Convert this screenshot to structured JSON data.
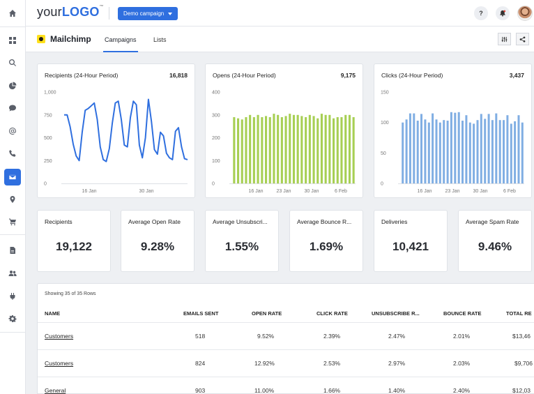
{
  "header": {
    "logo_prefix": "your",
    "logo_strong": "LOGO",
    "logo_tm": "™",
    "campaign_button": "Demo campaign",
    "help_label": "?"
  },
  "subheader": {
    "integration_name": "Mailchimp",
    "tabs": [
      {
        "label": "Campaigns",
        "active": true
      },
      {
        "label": "Lists",
        "active": false
      }
    ]
  },
  "sidebar": {
    "items": [
      {
        "icon": "home-icon"
      },
      {
        "icon": "dashboard-grid-icon"
      },
      {
        "icon": "search-icon"
      },
      {
        "icon": "pie-chart-icon"
      },
      {
        "icon": "chat-icon"
      },
      {
        "icon": "at-sign-icon"
      },
      {
        "icon": "phone-icon"
      },
      {
        "icon": "email-icon",
        "active": true
      },
      {
        "icon": "location-pin-icon"
      },
      {
        "icon": "cart-icon"
      },
      {
        "icon": "report-document-icon"
      },
      {
        "icon": "users-icon"
      },
      {
        "icon": "plug-icon"
      },
      {
        "icon": "settings-gear-icon"
      }
    ]
  },
  "colors": {
    "accent": "#2f6fdf",
    "recipients_line": "#2f6fdf",
    "opens_bar": "#a7cf54",
    "clicks_bar": "#80aee3"
  },
  "charts": {
    "recipients": {
      "title": "Recipients (24-Hour Period)",
      "total": "16,818"
    },
    "opens": {
      "title": "Opens (24-Hour Period)",
      "total": "9,175"
    },
    "clicks": {
      "title": "Clicks (24-Hour Period)",
      "total": "3,437"
    }
  },
  "chart_data": [
    {
      "type": "line",
      "title": "Recipients (24-Hour Period)",
      "ylim": [
        0,
        1000
      ],
      "yticks": [
        "1,000",
        "750",
        "500",
        "250",
        "0"
      ],
      "xtick_labels": [
        "16 Jan",
        "30 Jan"
      ],
      "series": [
        {
          "values": [
            750,
            750,
            620,
            430,
            300,
            250,
            560,
            800,
            820,
            850,
            880,
            700,
            400,
            260,
            240,
            380,
            660,
            880,
            900,
            700,
            420,
            400,
            720,
            900,
            860,
            420,
            280,
            500,
            920,
            680,
            370,
            320,
            560,
            520,
            330,
            280,
            260,
            570,
            610,
            400,
            270,
            260
          ]
        }
      ]
    },
    {
      "type": "bar",
      "title": "Opens (24-Hour Period)",
      "ylim": [
        0,
        400
      ],
      "yticks": [
        "400",
        "300",
        "200",
        "100",
        "0"
      ],
      "xtick_labels": [
        "16 Jan",
        "23 Jan",
        "30 Jan",
        "6 Feb"
      ],
      "series": [
        {
          "values": [
            290,
            285,
            280,
            290,
            300,
            290,
            300,
            290,
            295,
            290,
            305,
            300,
            290,
            295,
            305,
            300,
            300,
            295,
            290,
            300,
            295,
            285,
            305,
            300,
            300,
            285,
            290,
            290,
            300,
            300,
            290
          ]
        }
      ]
    },
    {
      "type": "bar",
      "title": "Clicks (24-Hour Period)",
      "ylim": [
        0,
        150
      ],
      "yticks": [
        "150",
        "100",
        "50",
        "0"
      ],
      "xtick_labels": [
        "16 Jan",
        "23 Jan",
        "30 Jan",
        "6 Feb"
      ],
      "series": [
        {
          "values": [
            100,
            105,
            115,
            115,
            103,
            114,
            105,
            100,
            115,
            105,
            100,
            104,
            103,
            117,
            116,
            117,
            103,
            112,
            100,
            98,
            104,
            114,
            106,
            114,
            104,
            115,
            104,
            104,
            112,
            98,
            102,
            112,
            100
          ]
        }
      ]
    }
  ],
  "kpis": [
    {
      "label": "Recipients",
      "value": "19,122"
    },
    {
      "label": "Average Open Rate",
      "value": "9.28%"
    },
    {
      "label": "Average Unsubscri...",
      "value": "1.55%"
    },
    {
      "label": "Average Bounce R...",
      "value": "1.69%"
    },
    {
      "label": "Deliveries",
      "value": "10,421"
    },
    {
      "label": "Average Spam Rate",
      "value": "9.46%"
    }
  ],
  "table": {
    "rows_info": "Showing 35 of 35 Rows",
    "columns": [
      "NAME",
      "EMAILS SENT",
      "OPEN RATE",
      "CLICK RATE",
      "UNSUBSCRIBE R...",
      "BOUNCE RATE",
      "TOTAL RE"
    ],
    "rows": [
      [
        "Customers",
        "518",
        "9.52%",
        "2.39%",
        "2.47%",
        "2.01%",
        "$13,46"
      ],
      [
        "Customers",
        "824",
        "12.92%",
        "2.53%",
        "2.97%",
        "2.03%",
        "$9,706"
      ],
      [
        "General",
        "903",
        "11.00%",
        "1.66%",
        "1.40%",
        "2.40%",
        "$12,03"
      ]
    ]
  }
}
